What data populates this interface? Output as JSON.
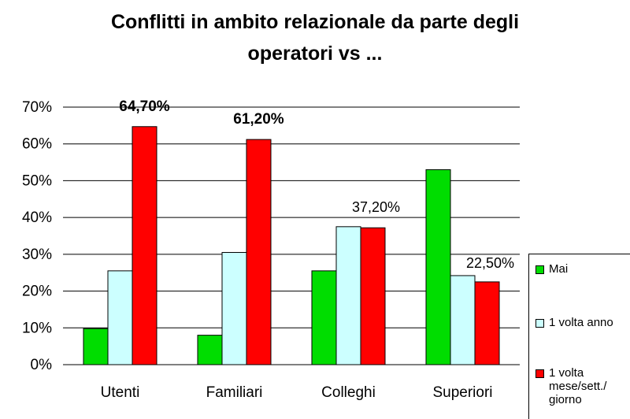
{
  "chart_data": {
    "type": "bar",
    "title_line1": "Conflitti in ambito relazionale da parte degli",
    "title_line2": "operatori vs ...",
    "categories": [
      "Utenti",
      "Familiari",
      "Colleghi",
      "Superiori"
    ],
    "series": [
      {
        "name": "Mai",
        "color": "#00dd00",
        "values": [
          9.8,
          8.0,
          25.5,
          53.0
        ]
      },
      {
        "name": "1 volta anno",
        "color": "#ccffff",
        "values": [
          25.5,
          30.5,
          37.5,
          24.2
        ]
      },
      {
        "name": "1 volta mese/sett./ giorno",
        "color": "#ff0000",
        "values": [
          64.7,
          61.2,
          37.2,
          22.5
        ]
      }
    ],
    "annotations": [
      "64,70%",
      "61,20%",
      "37,20%",
      "22,50%"
    ],
    "y_ticks": [
      "0%",
      "10%",
      "20%",
      "30%",
      "40%",
      "50%",
      "60%",
      "70%"
    ],
    "ylim": [
      0,
      70
    ],
    "grid": true,
    "legend_position": "right"
  }
}
